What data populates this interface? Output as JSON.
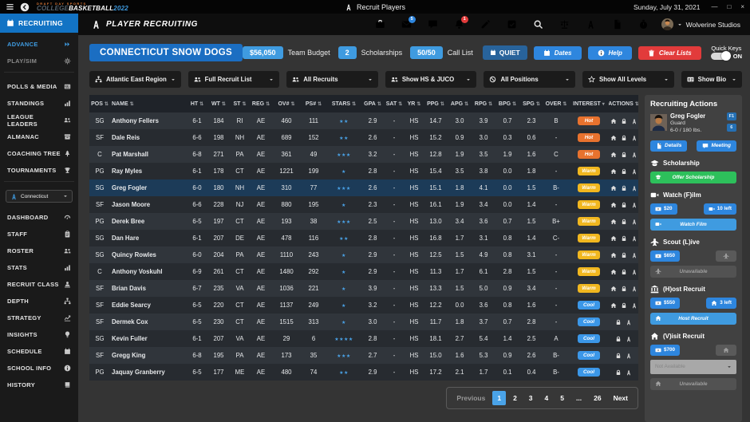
{
  "titlebar": {
    "logo_top": "DRAFT DAY SPORTS",
    "logo_college": "COLLEGE",
    "logo_basketball": "BASKETBALL",
    "logo_year": "2022",
    "title": "Recruit Players",
    "date": "Sunday, July 31, 2021"
  },
  "toolbar": {
    "page_title": "PLAYER RECRUITING",
    "user": "Wolverine Studios",
    "icons": [
      {
        "icon": "briefcase"
      },
      {
        "icon": "envelope",
        "badge": "5",
        "badge_color": "#2e86de"
      },
      {
        "icon": "chat"
      },
      {
        "icon": "bell",
        "badge": "1",
        "badge_color": "#e23b3b"
      },
      {
        "icon": "edit"
      },
      {
        "icon": "boxcheck"
      },
      {
        "icon": "search"
      },
      {
        "icon": "scale"
      },
      {
        "icon": "players"
      },
      {
        "icon": "file"
      },
      {
        "icon": "stopwatch"
      }
    ]
  },
  "sidebar": {
    "header": {
      "label": "RECRUITING",
      "icon": "calendar"
    },
    "top_items": [
      {
        "label": "ADVANCE",
        "icon": "chevrons",
        "active": true
      },
      {
        "label": "PLAY/SIM",
        "icon": "gear",
        "muted": true
      }
    ],
    "league_items": [
      {
        "label": "POLLS & MEDIA",
        "icon": "newspaper"
      },
      {
        "label": "STANDINGS",
        "icon": "chart"
      },
      {
        "label": "LEAGUE LEADERS",
        "icon": "users"
      },
      {
        "label": "ALMANAC",
        "icon": "archive"
      },
      {
        "label": "COACHING TREE",
        "icon": "tree"
      },
      {
        "label": "TOURNAMENTS",
        "icon": "trophy"
      }
    ],
    "team_selector": {
      "label": "Connecticut",
      "icon": "players"
    },
    "team_items": [
      {
        "label": "DASHBOARD",
        "icon": "dashboard"
      },
      {
        "label": "STAFF",
        "icon": "clipboard"
      },
      {
        "label": "ROSTER",
        "icon": "users"
      },
      {
        "label": "STATS",
        "icon": "chart"
      },
      {
        "label": "RECRUIT CLASS",
        "icon": "recruit"
      },
      {
        "label": "DEPTH",
        "icon": "sitemap"
      },
      {
        "label": "STRATEGY",
        "icon": "strategy"
      },
      {
        "label": "INSIGHTS",
        "icon": "bulb"
      },
      {
        "label": "SCHEDULE",
        "icon": "calendar"
      },
      {
        "label": "SCHOOL INFO",
        "icon": "info"
      },
      {
        "label": "HISTORY",
        "icon": "book"
      }
    ]
  },
  "header": {
    "team_name": "CONNECTICUT SNOW DOGS",
    "stats": [
      {
        "value": "$56,050",
        "label": "Team Budget"
      },
      {
        "value": "2",
        "label": "Scholarships"
      },
      {
        "value": "50/50",
        "label": "Call List"
      }
    ],
    "quiet_button": {
      "label": "QUIET",
      "icon": "calendar"
    },
    "buttons": [
      {
        "label": "Dates",
        "icon": "calendar",
        "color": "blue"
      },
      {
        "label": "Help",
        "icon": "info",
        "color": "blue"
      },
      {
        "label": "Clear Lists",
        "icon": "trash",
        "color": "red"
      }
    ],
    "quick_keys": {
      "label": "Quick Keys",
      "state": "ON"
    }
  },
  "filters": [
    {
      "label": "Atlantic East Region",
      "icon": "sitemap"
    },
    {
      "label": "Full Recruit List",
      "icon": "users"
    },
    {
      "label": "All Recruits",
      "icon": "users"
    },
    {
      "label": "Show HS & JUCO",
      "icon": "users"
    },
    {
      "label": "All Positions",
      "icon": "ban"
    },
    {
      "label": "Show All Levels",
      "icon": "star"
    },
    {
      "label": "Show Bio",
      "icon": "idcard",
      "small": true
    }
  ],
  "table": {
    "columns": [
      "POS",
      "NAME",
      "HT",
      "WT",
      "ST",
      "REG",
      "OV#",
      "PS#",
      "STARS",
      "GPA",
      "SAT",
      "YR",
      "PPG",
      "APG",
      "RPG",
      "BPG",
      "SPG",
      "OVER",
      "INTEREST",
      "ACTIONS"
    ],
    "interest_colors": {
      "Hot": "#e8722e",
      "Warm": "#f1b71f",
      "Cool": "#3b97e8"
    },
    "rows": [
      {
        "pos": "SG",
        "name": "Anthony Fellers",
        "ht": "6-1",
        "wt": "184",
        "st": "RI",
        "reg": "AE",
        "ov": "460",
        "ps": "111",
        "stars": 2,
        "gpa": "2.9",
        "sat": "-",
        "yr": "HS",
        "ppg": "14.7",
        "apg": "3.0",
        "rpg": "3.9",
        "bpg": "0.7",
        "spg": "2.3",
        "over": "B",
        "interest": "Hot",
        "actions": [
          "home",
          "lock",
          "players"
        ]
      },
      {
        "pos": "SF",
        "name": "Dale Reis",
        "ht": "6-6",
        "wt": "198",
        "st": "NH",
        "reg": "AE",
        "ov": "689",
        "ps": "152",
        "stars": 2,
        "gpa": "2.6",
        "sat": "-",
        "yr": "HS",
        "ppg": "15.2",
        "apg": "0.9",
        "rpg": "3.0",
        "bpg": "0.3",
        "spg": "0.6",
        "over": "-",
        "interest": "Hot",
        "actions": [
          "home",
          "lock",
          "players"
        ]
      },
      {
        "pos": "C",
        "name": "Pat Marshall",
        "ht": "6-8",
        "wt": "271",
        "st": "PA",
        "reg": "AE",
        "ov": "361",
        "ps": "49",
        "stars": 3,
        "gpa": "3.2",
        "sat": "-",
        "yr": "HS",
        "ppg": "12.8",
        "apg": "1.9",
        "rpg": "3.5",
        "bpg": "1.9",
        "spg": "1.6",
        "over": "C",
        "interest": "Hot",
        "actions": [
          "home",
          "lock",
          "players"
        ]
      },
      {
        "pos": "PG",
        "name": "Ray Myles",
        "ht": "6-1",
        "wt": "178",
        "st": "CT",
        "reg": "AE",
        "ov": "1221",
        "ps": "199",
        "stars": 1,
        "gpa": "2.8",
        "sat": "-",
        "yr": "HS",
        "ppg": "15.4",
        "apg": "3.5",
        "rpg": "3.8",
        "bpg": "0.0",
        "spg": "1.8",
        "over": "-",
        "interest": "Warm",
        "actions": [
          "home",
          "lock",
          "players"
        ]
      },
      {
        "pos": "SG",
        "name": "Greg Fogler",
        "ht": "6-0",
        "wt": "180",
        "st": "NH",
        "reg": "AE",
        "ov": "310",
        "ps": "77",
        "stars": 3,
        "gpa": "2.6",
        "sat": "-",
        "yr": "HS",
        "ppg": "15.1",
        "apg": "1.8",
        "rpg": "4.1",
        "bpg": "0.0",
        "spg": "1.5",
        "over": "B-",
        "interest": "Warm",
        "actions": [
          "home",
          "lock",
          "players"
        ],
        "selected": true
      },
      {
        "pos": "SF",
        "name": "Jason Moore",
        "ht": "6-6",
        "wt": "228",
        "st": "NJ",
        "reg": "AE",
        "ov": "880",
        "ps": "195",
        "stars": 1,
        "gpa": "2.3",
        "sat": "-",
        "yr": "HS",
        "ppg": "16.1",
        "apg": "1.9",
        "rpg": "3.4",
        "bpg": "0.0",
        "spg": "1.4",
        "over": "-",
        "interest": "Warm",
        "actions": [
          "home",
          "lock",
          "players"
        ]
      },
      {
        "pos": "PG",
        "name": "Derek Bree",
        "ht": "6-5",
        "wt": "197",
        "st": "CT",
        "reg": "AE",
        "ov": "193",
        "ps": "38",
        "stars": 3,
        "gpa": "2.5",
        "sat": "-",
        "yr": "HS",
        "ppg": "13.0",
        "apg": "3.4",
        "rpg": "3.6",
        "bpg": "0.7",
        "spg": "1.5",
        "over": "B+",
        "interest": "Warm",
        "actions": [
          "home",
          "lock",
          "players"
        ]
      },
      {
        "pos": "SG",
        "name": "Dan Hare",
        "ht": "6-1",
        "wt": "207",
        "st": "DE",
        "reg": "AE",
        "ov": "478",
        "ps": "116",
        "stars": 2,
        "gpa": "2.8",
        "sat": "-",
        "yr": "HS",
        "ppg": "16.8",
        "apg": "1.7",
        "rpg": "3.1",
        "bpg": "0.8",
        "spg": "1.4",
        "over": "C-",
        "interest": "Warm",
        "actions": [
          "home",
          "lock",
          "players"
        ]
      },
      {
        "pos": "SG",
        "name": "Quincy Rowles",
        "ht": "6-0",
        "wt": "204",
        "st": "PA",
        "reg": "AE",
        "ov": "1110",
        "ps": "243",
        "stars": 1,
        "gpa": "2.9",
        "sat": "-",
        "yr": "HS",
        "ppg": "12.5",
        "apg": "1.5",
        "rpg": "4.9",
        "bpg": "0.8",
        "spg": "3.1",
        "over": "-",
        "interest": "Warm",
        "actions": [
          "home",
          "lock",
          "players"
        ]
      },
      {
        "pos": "C",
        "name": "Anthony Voskuhl",
        "ht": "6-9",
        "wt": "261",
        "st": "CT",
        "reg": "AE",
        "ov": "1480",
        "ps": "292",
        "stars": 1,
        "gpa": "2.9",
        "sat": "-",
        "yr": "HS",
        "ppg": "11.3",
        "apg": "1.7",
        "rpg": "6.1",
        "bpg": "2.8",
        "spg": "1.5",
        "over": "-",
        "interest": "Warm",
        "actions": [
          "home",
          "lock",
          "players"
        ]
      },
      {
        "pos": "SF",
        "name": "Brian Davis",
        "ht": "6-7",
        "wt": "235",
        "st": "VA",
        "reg": "AE",
        "ov": "1036",
        "ps": "221",
        "stars": 1,
        "gpa": "3.9",
        "sat": "-",
        "yr": "HS",
        "ppg": "13.3",
        "apg": "1.5",
        "rpg": "5.0",
        "bpg": "0.9",
        "spg": "3.4",
        "over": "-",
        "interest": "Warm",
        "actions": [
          "home",
          "lock",
          "players"
        ]
      },
      {
        "pos": "SF",
        "name": "Eddie Searcy",
        "ht": "6-5",
        "wt": "220",
        "st": "CT",
        "reg": "AE",
        "ov": "1137",
        "ps": "249",
        "stars": 1,
        "gpa": "3.2",
        "sat": "-",
        "yr": "HS",
        "ppg": "12.2",
        "apg": "0.0",
        "rpg": "3.6",
        "bpg": "0.8",
        "spg": "1.6",
        "over": "-",
        "interest": "Cool",
        "actions": [
          "home",
          "lock",
          "players"
        ]
      },
      {
        "pos": "SF",
        "name": "Dermek Cox",
        "ht": "6-5",
        "wt": "230",
        "st": "CT",
        "reg": "AE",
        "ov": "1515",
        "ps": "313",
        "stars": 1,
        "gpa": "3.0",
        "sat": "-",
        "yr": "HS",
        "ppg": "11.7",
        "apg": "1.8",
        "rpg": "3.7",
        "bpg": "0.7",
        "spg": "2.8",
        "over": "-",
        "interest": "Cool",
        "actions": [
          "lock",
          "players"
        ]
      },
      {
        "pos": "SG",
        "name": "Kevin Fuller",
        "ht": "6-1",
        "wt": "207",
        "st": "VA",
        "reg": "AE",
        "ov": "29",
        "ps": "6",
        "stars": 4,
        "gpa": "2.8",
        "sat": "-",
        "yr": "HS",
        "ppg": "18.1",
        "apg": "2.7",
        "rpg": "5.4",
        "bpg": "1.4",
        "spg": "2.5",
        "over": "A",
        "interest": "Cool",
        "actions": [
          "lock",
          "players"
        ]
      },
      {
        "pos": "SF",
        "name": "Gregg King",
        "ht": "6-8",
        "wt": "195",
        "st": "PA",
        "reg": "AE",
        "ov": "173",
        "ps": "35",
        "stars": 3,
        "gpa": "2.7",
        "sat": "-",
        "yr": "HS",
        "ppg": "15.0",
        "apg": "1.6",
        "rpg": "5.3",
        "bpg": "0.9",
        "spg": "2.6",
        "over": "B-",
        "interest": "Cool",
        "actions": [
          "lock",
          "players"
        ]
      },
      {
        "pos": "PG",
        "name": "Jaquay Granberry",
        "ht": "6-5",
        "wt": "177",
        "st": "ME",
        "reg": "AE",
        "ov": "480",
        "ps": "74",
        "stars": 2,
        "gpa": "2.9",
        "sat": "-",
        "yr": "HS",
        "ppg": "17.2",
        "apg": "2.1",
        "rpg": "1.7",
        "bpg": "0.1",
        "spg": "0.4",
        "over": "B-",
        "interest": "Cool",
        "actions": [
          "lock",
          "players"
        ]
      }
    ]
  },
  "pagination": {
    "previous": "Previous",
    "pages": [
      "1",
      "2",
      "3",
      "4",
      "5",
      "...",
      "26"
    ],
    "active_page": "1",
    "next": "Next"
  },
  "actions_panel": {
    "title": "Recruiting Actions",
    "player": {
      "name": "Greg Fogler",
      "position": "Guard",
      "size": "6-0 / 180 lbs.",
      "keys": [
        "F1",
        "6"
      ]
    },
    "detail_buttons": [
      {
        "label": "Details",
        "icon": "file"
      },
      {
        "label": "Meeting",
        "icon": "chat"
      }
    ],
    "sections": [
      {
        "title": "Scholarship",
        "icon": "gradcap",
        "buttons": [],
        "main": {
          "label": "Offer Scholarship",
          "icon": "gradcap",
          "style": "green"
        }
      },
      {
        "title": "Watch (F)ilm",
        "icon": "video",
        "buttons": [
          {
            "label": "$20",
            "icon": "money",
            "style": "blue"
          },
          {
            "label": "10 left",
            "icon": "video",
            "style": "blue"
          }
        ],
        "main": {
          "label": "Watch Film",
          "icon": "video",
          "style": "wideblue"
        }
      },
      {
        "title": "Scout (L)ive",
        "icon": "plane",
        "buttons": [
          {
            "label": "$650",
            "icon": "money",
            "style": "blue"
          },
          {
            "label": "",
            "icon": "plane",
            "style": "graysm"
          }
        ],
        "main": {
          "label": "Unavailable",
          "icon": "plane",
          "style": "widegray"
        }
      },
      {
        "title": "(H)ost Recruit",
        "icon": "bank",
        "buttons": [
          {
            "label": "$550",
            "icon": "money",
            "style": "blue"
          },
          {
            "label": "3 left",
            "icon": "home",
            "style": "blue"
          }
        ],
        "main": {
          "label": "Host Recruit",
          "icon": "home",
          "style": "wideblue"
        }
      },
      {
        "title": "(V)isit Recruit",
        "icon": "home",
        "buttons": [
          {
            "label": "$700",
            "icon": "money",
            "style": "blue"
          },
          {
            "label": "",
            "icon": "home",
            "style": "graysm"
          }
        ],
        "dropdown": "Not Available",
        "main": {
          "label": "Unavailable",
          "icon": "home",
          "style": "widegray"
        }
      }
    ]
  }
}
